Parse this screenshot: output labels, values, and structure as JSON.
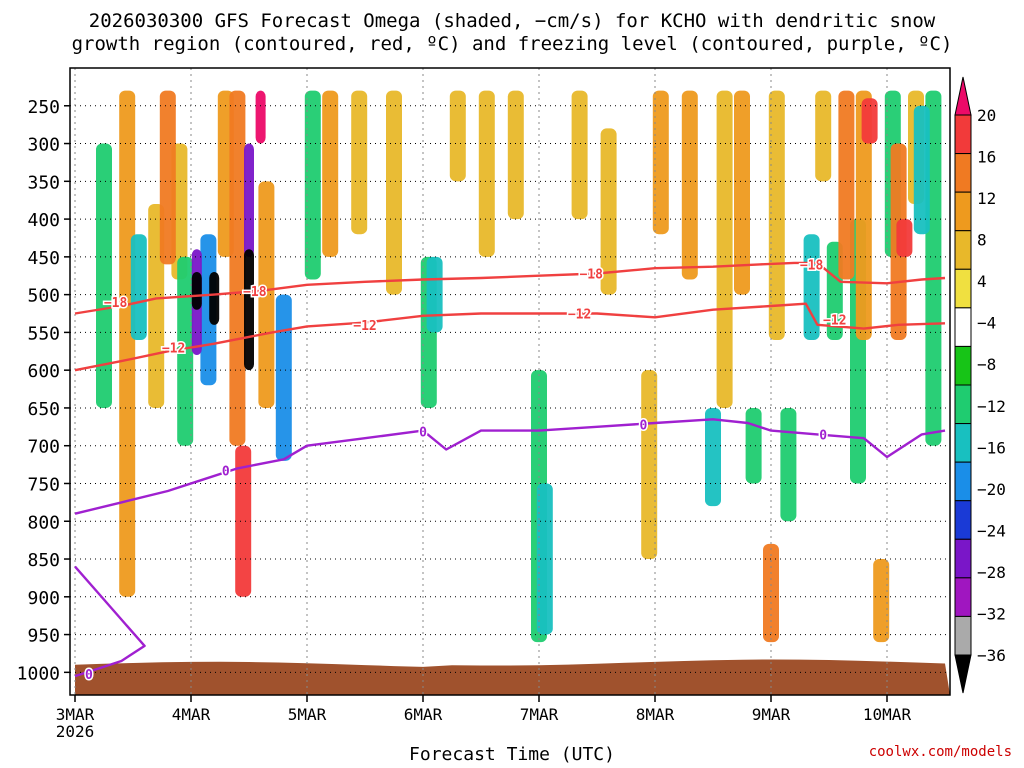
{
  "title": {
    "line1": "2026030300 GFS Forecast Omega (shaded, −cm/s) for KCHO with dendritic snow",
    "line2": "growth region (contoured, red, ºC) and freezing level (contoured, purple, ºC)"
  },
  "watermark": "coolwx.com/models",
  "chart_data": {
    "type": "heatmap",
    "xlabel": "Forecast Time (UTC)",
    "x_ticks": [
      {
        "t": 0,
        "label": "3MAR",
        "sub": "2026"
      },
      {
        "t": 1,
        "label": "4MAR"
      },
      {
        "t": 2,
        "label": "5MAR"
      },
      {
        "t": 3,
        "label": "6MAR"
      },
      {
        "t": 4,
        "label": "7MAR"
      },
      {
        "t": 5,
        "label": "8MAR"
      },
      {
        "t": 6,
        "label": "9MAR"
      },
      {
        "t": 7,
        "label": "10MAR"
      }
    ],
    "xlim": [
      0,
      7.5
    ],
    "y_ticks": [
      250,
      300,
      350,
      400,
      450,
      500,
      550,
      600,
      650,
      700,
      750,
      800,
      850,
      900,
      950,
      1000
    ],
    "ylim": [
      200,
      1030
    ],
    "grid": true,
    "colorbar": {
      "labels": [
        "20",
        "16",
        "12",
        "8",
        "4",
        "−4",
        "−8",
        "−12",
        "−16",
        "−20",
        "−24",
        "−28",
        "−32",
        "−36"
      ],
      "colors": [
        "#ec0a68",
        "#f23a3a",
        "#f07a22",
        "#ee9a1e",
        "#e8b82a",
        "#f0e040",
        "#ffffff",
        "#17c417",
        "#1fcc70",
        "#18c0c0",
        "#1a8ee8",
        "#1a3ad6",
        "#7a16c8",
        "#a016c0",
        "#aaaaaa",
        "#000000"
      ]
    },
    "omega_cells": [
      {
        "t": 0.25,
        "p1": 300,
        "p2": 650,
        "v": -8
      },
      {
        "t": 0.45,
        "p1": 230,
        "p2": 900,
        "v": 8
      },
      {
        "t": 0.55,
        "p1": 420,
        "p2": 560,
        "v": -12
      },
      {
        "t": 0.7,
        "p1": 380,
        "p2": 650,
        "v": 4
      },
      {
        "t": 0.8,
        "p1": 230,
        "p2": 460,
        "v": 12
      },
      {
        "t": 0.9,
        "p1": 300,
        "p2": 480,
        "v": 4
      },
      {
        "t": 0.95,
        "p1": 450,
        "p2": 700,
        "v": -8
      },
      {
        "t": 1.05,
        "p1": 440,
        "p2": 580,
        "v": -24
      },
      {
        "t": 1.05,
        "p1": 470,
        "p2": 520,
        "v": -36
      },
      {
        "t": 1.15,
        "p1": 420,
        "p2": 620,
        "v": -16
      },
      {
        "t": 1.2,
        "p1": 470,
        "p2": 540,
        "v": -36
      },
      {
        "t": 1.3,
        "p1": 230,
        "p2": 450,
        "v": 8
      },
      {
        "t": 1.4,
        "p1": 230,
        "p2": 700,
        "v": 12
      },
      {
        "t": 1.45,
        "p1": 700,
        "p2": 900,
        "v": 16
      },
      {
        "t": 1.5,
        "p1": 300,
        "p2": 450,
        "v": -24
      },
      {
        "t": 1.5,
        "p1": 440,
        "p2": 600,
        "v": -36
      },
      {
        "t": 1.6,
        "p1": 230,
        "p2": 300,
        "v": 20
      },
      {
        "t": 1.65,
        "p1": 350,
        "p2": 650,
        "v": 8
      },
      {
        "t": 1.8,
        "p1": 500,
        "p2": 720,
        "v": -16
      },
      {
        "t": 2.05,
        "p1": 230,
        "p2": 480,
        "v": -8
      },
      {
        "t": 2.2,
        "p1": 230,
        "p2": 450,
        "v": 8
      },
      {
        "t": 2.45,
        "p1": 230,
        "p2": 420,
        "v": 4
      },
      {
        "t": 2.75,
        "p1": 230,
        "p2": 500,
        "v": 4
      },
      {
        "t": 3.05,
        "p1": 450,
        "p2": 650,
        "v": -8
      },
      {
        "t": 3.1,
        "p1": 450,
        "p2": 550,
        "v": -12
      },
      {
        "t": 3.3,
        "p1": 230,
        "p2": 350,
        "v": 4
      },
      {
        "t": 3.55,
        "p1": 230,
        "p2": 450,
        "v": 4
      },
      {
        "t": 3.8,
        "p1": 230,
        "p2": 400,
        "v": 4
      },
      {
        "t": 4.0,
        "p1": 600,
        "p2": 960,
        "v": -8
      },
      {
        "t": 4.05,
        "p1": 750,
        "p2": 950,
        "v": -12
      },
      {
        "t": 4.35,
        "p1": 230,
        "p2": 400,
        "v": 4
      },
      {
        "t": 4.6,
        "p1": 280,
        "p2": 500,
        "v": 4
      },
      {
        "t": 4.95,
        "p1": 600,
        "p2": 850,
        "v": 4
      },
      {
        "t": 5.05,
        "p1": 230,
        "p2": 420,
        "v": 8
      },
      {
        "t": 5.3,
        "p1": 230,
        "p2": 480,
        "v": 8
      },
      {
        "t": 5.5,
        "p1": 650,
        "p2": 780,
        "v": -12
      },
      {
        "t": 5.6,
        "p1": 230,
        "p2": 650,
        "v": 4
      },
      {
        "t": 5.75,
        "p1": 230,
        "p2": 500,
        "v": 8
      },
      {
        "t": 5.85,
        "p1": 650,
        "p2": 750,
        "v": -8
      },
      {
        "t": 6.0,
        "p1": 830,
        "p2": 960,
        "v": 12
      },
      {
        "t": 6.05,
        "p1": 230,
        "p2": 560,
        "v": 4
      },
      {
        "t": 6.15,
        "p1": 650,
        "p2": 800,
        "v": -8
      },
      {
        "t": 6.35,
        "p1": 420,
        "p2": 560,
        "v": -12
      },
      {
        "t": 6.45,
        "p1": 230,
        "p2": 350,
        "v": 4
      },
      {
        "t": 6.55,
        "p1": 430,
        "p2": 560,
        "v": -8
      },
      {
        "t": 6.65,
        "p1": 230,
        "p2": 480,
        "v": 12
      },
      {
        "t": 6.75,
        "p1": 400,
        "p2": 750,
        "v": -8
      },
      {
        "t": 6.8,
        "p1": 230,
        "p2": 560,
        "v": 8
      },
      {
        "t": 6.85,
        "p1": 240,
        "p2": 300,
        "v": 16
      },
      {
        "t": 6.95,
        "p1": 850,
        "p2": 960,
        "v": 8
      },
      {
        "t": 7.05,
        "p1": 230,
        "p2": 450,
        "v": -8
      },
      {
        "t": 7.1,
        "p1": 300,
        "p2": 560,
        "v": 12
      },
      {
        "t": 7.15,
        "p1": 400,
        "p2": 450,
        "v": 16
      },
      {
        "t": 7.25,
        "p1": 230,
        "p2": 380,
        "v": 4
      },
      {
        "t": 7.3,
        "p1": 250,
        "p2": 420,
        "v": -12
      },
      {
        "t": 7.4,
        "p1": 230,
        "p2": 700,
        "v": -8
      }
    ],
    "contours": [
      {
        "name": "dgz_-18",
        "color": "#f04040",
        "label": "−18",
        "points": [
          [
            0.0,
            525
          ],
          [
            0.4,
            515
          ],
          [
            0.7,
            505
          ],
          [
            1.2,
            500
          ],
          [
            1.6,
            495
          ],
          [
            2.0,
            487
          ],
          [
            2.5,
            483
          ],
          [
            3.0,
            480
          ],
          [
            3.5,
            478
          ],
          [
            4.0,
            475
          ],
          [
            4.5,
            472
          ],
          [
            5.0,
            465
          ],
          [
            5.5,
            463
          ],
          [
            5.9,
            460
          ],
          [
            6.2,
            458
          ],
          [
            6.4,
            458
          ],
          [
            6.6,
            483
          ],
          [
            7.0,
            485
          ],
          [
            7.3,
            480
          ],
          [
            7.5,
            478
          ]
        ],
        "label_at": [
          [
            0.35,
            510
          ],
          [
            1.55,
            495
          ],
          [
            4.45,
            472
          ],
          [
            6.35,
            460
          ]
        ]
      },
      {
        "name": "dgz_-12",
        "color": "#f04040",
        "label": "−12",
        "points": [
          [
            0.0,
            600
          ],
          [
            0.4,
            588
          ],
          [
            0.8,
            575
          ],
          [
            1.2,
            565
          ],
          [
            1.7,
            550
          ],
          [
            2.0,
            542
          ],
          [
            2.5,
            537
          ],
          [
            3.0,
            528
          ],
          [
            3.5,
            525
          ],
          [
            4.0,
            525
          ],
          [
            4.5,
            525
          ],
          [
            5.0,
            530
          ],
          [
            5.5,
            520
          ],
          [
            6.0,
            515
          ],
          [
            6.3,
            512
          ],
          [
            6.4,
            540
          ],
          [
            6.8,
            545
          ],
          [
            7.1,
            540
          ],
          [
            7.5,
            538
          ]
        ],
        "label_at": [
          [
            0.85,
            570
          ],
          [
            2.5,
            540
          ],
          [
            4.35,
            525
          ],
          [
            6.55,
            533
          ]
        ]
      },
      {
        "name": "freezing_0",
        "color": "#a020d0",
        "label": "0",
        "points": [
          [
            0.0,
            790
          ],
          [
            0.4,
            775
          ],
          [
            0.8,
            760
          ],
          [
            1.1,
            745
          ],
          [
            1.4,
            730
          ],
          [
            1.8,
            718
          ],
          [
            2.0,
            700
          ],
          [
            2.5,
            690
          ],
          [
            3.0,
            680
          ],
          [
            3.2,
            705
          ],
          [
            3.5,
            680
          ],
          [
            4.0,
            680
          ],
          [
            4.5,
            675
          ],
          [
            5.0,
            670
          ],
          [
            5.5,
            665
          ],
          [
            5.8,
            670
          ],
          [
            6.0,
            680
          ],
          [
            6.4,
            685
          ],
          [
            6.8,
            690
          ],
          [
            7.0,
            715
          ],
          [
            7.3,
            685
          ],
          [
            7.5,
            680
          ]
        ],
        "label_at": [
          [
            1.3,
            733
          ],
          [
            3.0,
            681
          ],
          [
            4.9,
            672
          ],
          [
            6.45,
            685
          ]
        ]
      },
      {
        "name": "surface_0",
        "color": "#a020d0",
        "label": "0",
        "points": [
          [
            0.0,
            860
          ],
          [
            0.2,
            895
          ],
          [
            0.4,
            930
          ],
          [
            0.6,
            965
          ],
          [
            0.4,
            985
          ],
          [
            0.2,
            995
          ],
          [
            0.0,
            1005
          ]
        ],
        "label_at": [
          [
            0.12,
            1002
          ]
        ]
      }
    ]
  }
}
